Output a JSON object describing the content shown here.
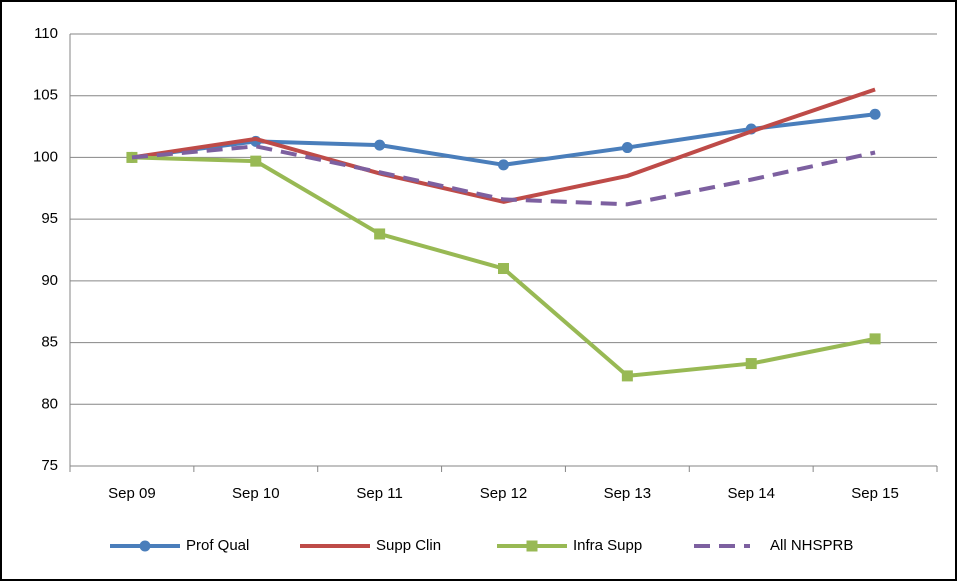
{
  "chart_data": {
    "type": "line",
    "categories": [
      "Sep 09",
      "Sep 10",
      "Sep 11",
      "Sep 12",
      "Sep 13",
      "Sep 14",
      "Sep 15"
    ],
    "series": [
      {
        "name": "Prof Qual",
        "color": "#4a7ebb",
        "marker": "circle",
        "dashed": false,
        "values": [
          100,
          101.3,
          101.0,
          99.4,
          100.8,
          102.3,
          103.5
        ]
      },
      {
        "name": "Supp Clin",
        "color": "#be4b48",
        "marker": null,
        "dashed": false,
        "values": [
          100,
          101.5,
          98.7,
          96.4,
          98.5,
          102.1,
          105.5
        ]
      },
      {
        "name": "Infra Supp",
        "color": "#98b954",
        "marker": "square",
        "dashed": false,
        "values": [
          100,
          99.7,
          93.8,
          91.0,
          82.3,
          83.3,
          85.3
        ]
      },
      {
        "name": "All NHSPRB",
        "color": "#7d60a0",
        "marker": null,
        "dashed": true,
        "values": [
          100,
          100.9,
          98.8,
          96.6,
          96.2,
          98.2,
          100.4
        ]
      }
    ],
    "ylim": [
      75,
      110
    ],
    "yticks": [
      75,
      80,
      85,
      90,
      95,
      100,
      105,
      110
    ],
    "grid": true,
    "legend": "bottom"
  }
}
